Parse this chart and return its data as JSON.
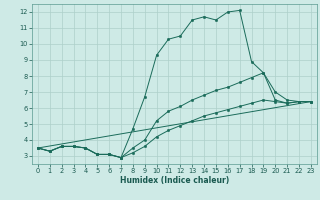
{
  "title": "",
  "xlabel": "Humidex (Indice chaleur)",
  "background_color": "#ceeae6",
  "grid_color": "#aed0ca",
  "line_color": "#1a6b5a",
  "xlim": [
    -0.5,
    23.5
  ],
  "ylim": [
    2.5,
    12.5
  ],
  "xticks": [
    0,
    1,
    2,
    3,
    4,
    5,
    6,
    7,
    8,
    9,
    10,
    11,
    12,
    13,
    14,
    15,
    16,
    17,
    18,
    19,
    20,
    21,
    22,
    23
  ],
  "yticks": [
    3,
    4,
    5,
    6,
    7,
    8,
    9,
    10,
    11,
    12
  ],
  "curve1_x": [
    0,
    1,
    2,
    3,
    4,
    5,
    6,
    7,
    8,
    9,
    10,
    11,
    12,
    13,
    14,
    15,
    16,
    17,
    18,
    19,
    20,
    21,
    22,
    23
  ],
  "curve1_y": [
    3.5,
    3.3,
    3.6,
    3.6,
    3.5,
    3.1,
    3.1,
    2.9,
    4.7,
    6.7,
    9.3,
    10.3,
    10.5,
    11.5,
    11.7,
    11.5,
    12.0,
    12.1,
    8.9,
    8.2,
    6.5,
    6.3,
    6.4,
    6.4
  ],
  "curve2_x": [
    0,
    1,
    2,
    3,
    4,
    5,
    6,
    7,
    8,
    9,
    10,
    11,
    12,
    13,
    14,
    15,
    16,
    17,
    18,
    19,
    20,
    21,
    22,
    23
  ],
  "curve2_y": [
    3.5,
    3.3,
    3.6,
    3.6,
    3.5,
    3.1,
    3.1,
    2.9,
    3.5,
    4.0,
    5.2,
    5.8,
    6.1,
    6.5,
    6.8,
    7.1,
    7.3,
    7.6,
    7.9,
    8.2,
    7.0,
    6.5,
    6.4,
    6.4
  ],
  "curve3_x": [
    0,
    1,
    2,
    3,
    4,
    5,
    6,
    7,
    8,
    9,
    10,
    11,
    12,
    13,
    14,
    15,
    16,
    17,
    18,
    19,
    20,
    21,
    22,
    23
  ],
  "curve3_y": [
    3.5,
    3.3,
    3.6,
    3.6,
    3.5,
    3.1,
    3.1,
    2.9,
    3.2,
    3.6,
    4.2,
    4.6,
    4.9,
    5.2,
    5.5,
    5.7,
    5.9,
    6.1,
    6.3,
    6.5,
    6.4,
    6.3,
    6.4,
    6.4
  ],
  "curve4_x": [
    0,
    23
  ],
  "curve4_y": [
    3.5,
    6.4
  ],
  "xlabel_fontsize": 5.5,
  "tick_fontsize": 4.8,
  "marker_size": 1.8,
  "line_width": 0.7
}
